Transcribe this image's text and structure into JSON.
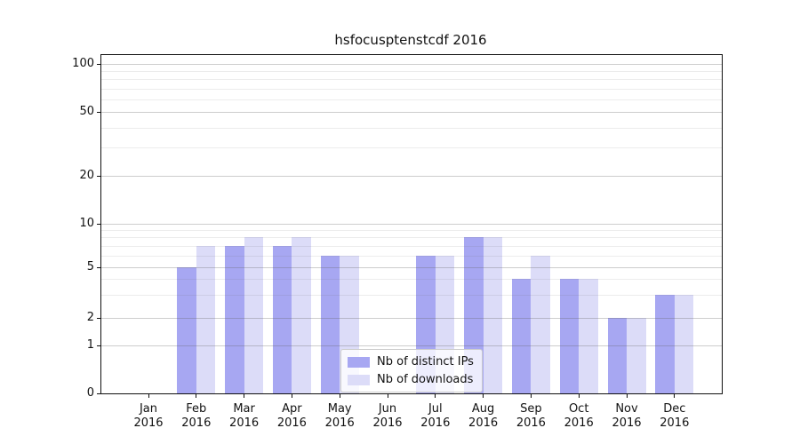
{
  "title": "hsfocusptenstcdf 2016",
  "chart_data": {
    "type": "bar",
    "title": "hsfocusptenstcdf 2016",
    "categories": [
      "Jan 2016",
      "Feb 2016",
      "Mar 2016",
      "Apr 2016",
      "May 2016",
      "Jun 2016",
      "Jul 2016",
      "Aug 2016",
      "Sep 2016",
      "Oct 2016",
      "Nov 2016",
      "Dec 2016"
    ],
    "series": [
      {
        "name": "Nb of distinct IPs",
        "color": "#a7a7f2",
        "values": [
          0,
          5,
          7,
          7,
          6,
          0,
          6,
          8,
          4,
          4,
          2,
          3
        ]
      },
      {
        "name": "Nb of downloads",
        "color": "#dcdcf8",
        "values": [
          0,
          7,
          8,
          8,
          6,
          0,
          6,
          8,
          6,
          4,
          2,
          3
        ]
      }
    ],
    "yscale": "log-like",
    "ylim": [
      0,
      113
    ],
    "y_major_ticks": [
      0,
      1,
      2,
      5,
      10,
      20,
      50,
      100
    ],
    "y_minor_gridlines": [
      3,
      4,
      6,
      7,
      8,
      9,
      30,
      40,
      60,
      70,
      80,
      90
    ],
    "grid": "both",
    "legend_position": "lower-center",
    "colors": {
      "bar_dark": "#a7a7f2",
      "bar_light": "#dcdcf8",
      "major_grid": "#cdcdcd",
      "minor_grid": "#ececec",
      "spine": "#0f0f0f"
    }
  }
}
